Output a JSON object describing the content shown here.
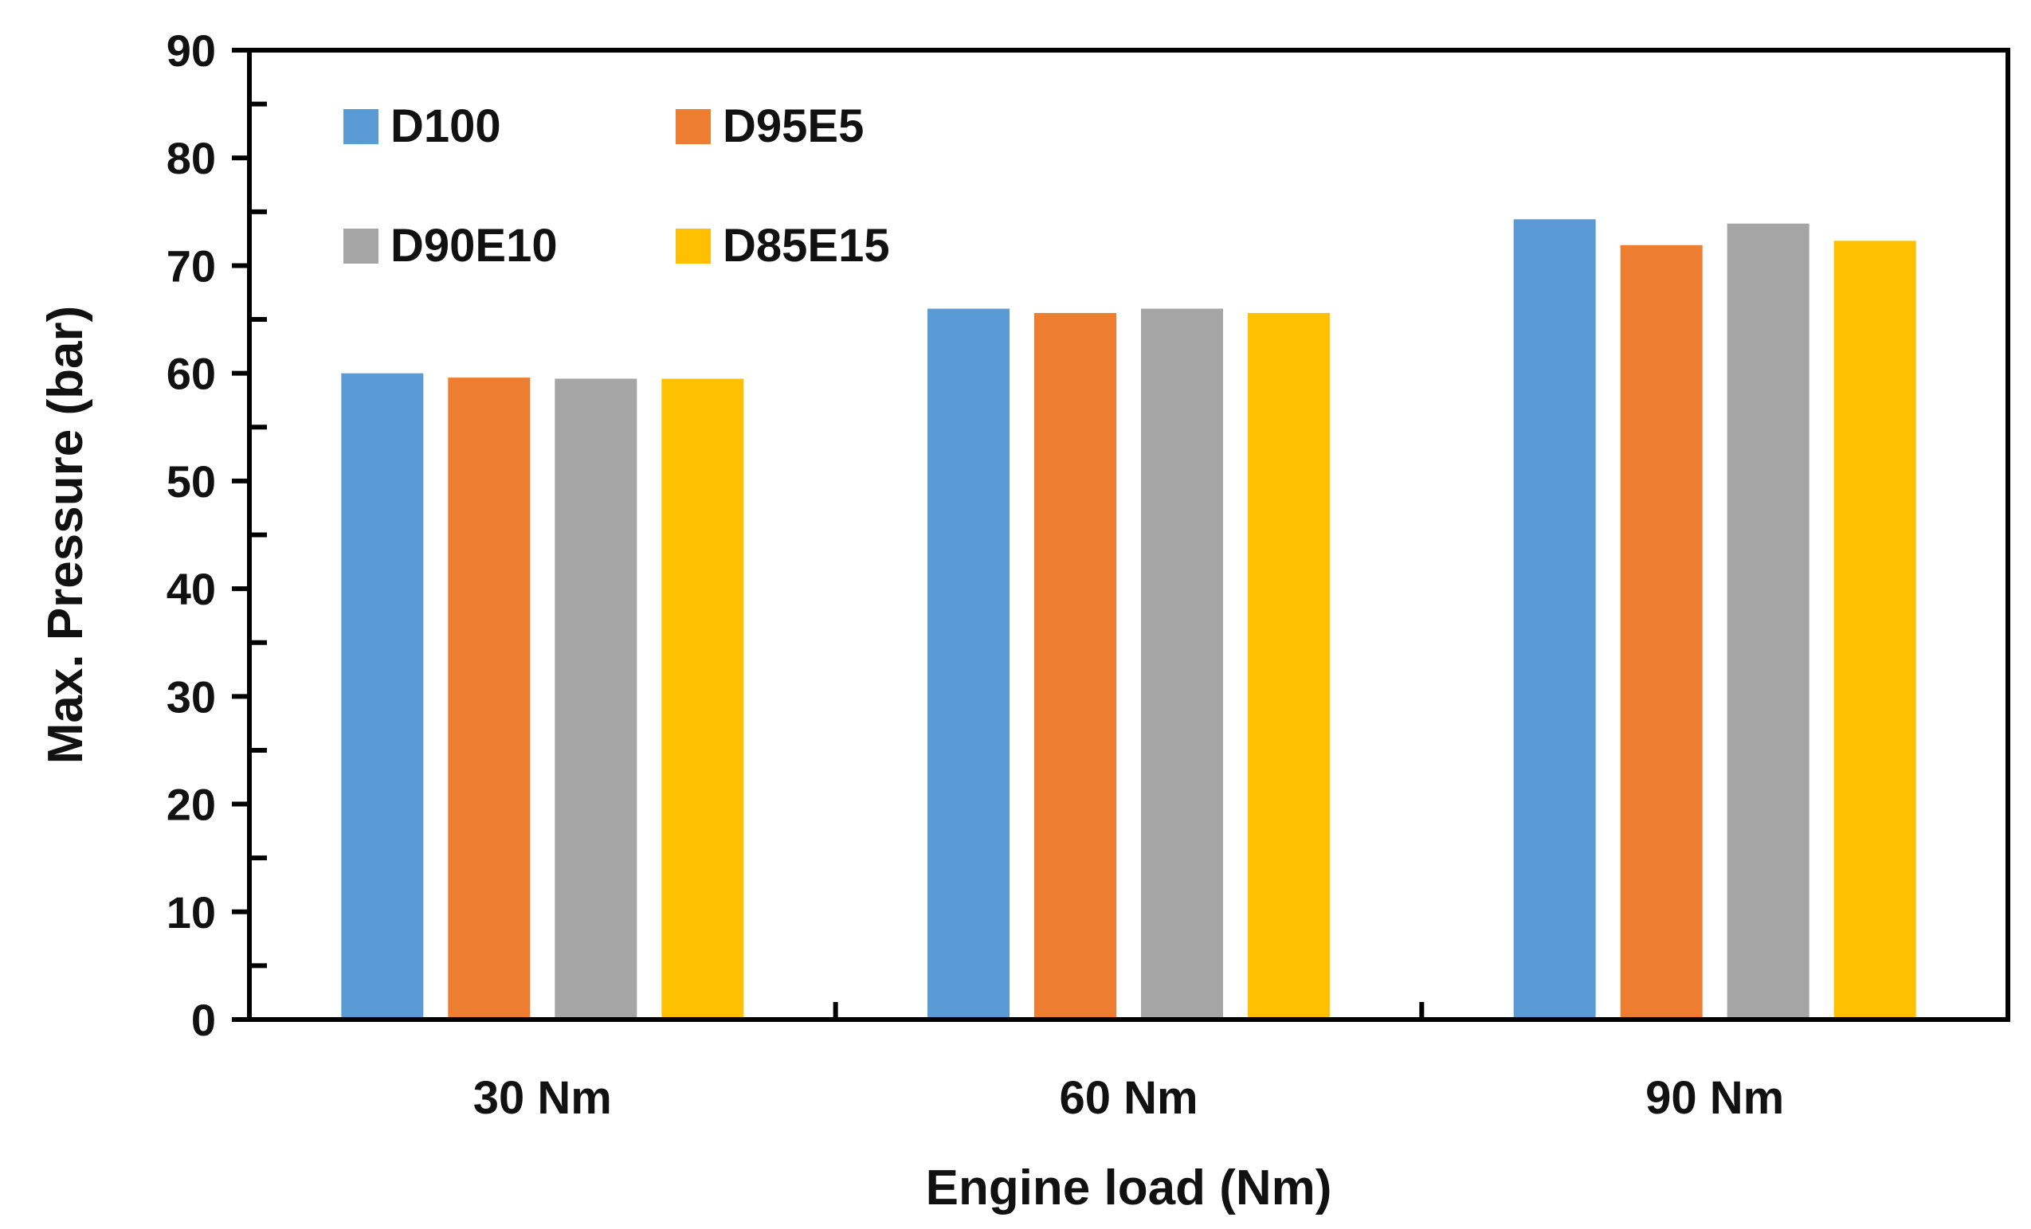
{
  "chart_data": {
    "type": "bar",
    "title": "",
    "xlabel": "Engine load (Nm)",
    "ylabel": "Max. Pressure (bar)",
    "categories": [
      "30 Nm",
      "60 Nm",
      "90 Nm"
    ],
    "ylim": [
      0,
      90
    ],
    "yticks": [
      "0",
      "10",
      "20",
      "30",
      "40",
      "50",
      "60",
      "70",
      "80",
      "90"
    ],
    "grid": false,
    "legend_position": "top-left",
    "series": [
      {
        "name": "D100",
        "color": "#5B9BD5",
        "values": [
          60.0,
          66.0,
          74.3
        ]
      },
      {
        "name": "D95E5",
        "color": "#ED7D31",
        "values": [
          59.6,
          65.6,
          71.9
        ]
      },
      {
        "name": "D90E10",
        "color": "#A5A5A5",
        "values": [
          59.5,
          66.0,
          73.9
        ]
      },
      {
        "name": "D85E15",
        "color": "#FFC000",
        "values": [
          59.5,
          65.6,
          72.3
        ]
      }
    ]
  }
}
